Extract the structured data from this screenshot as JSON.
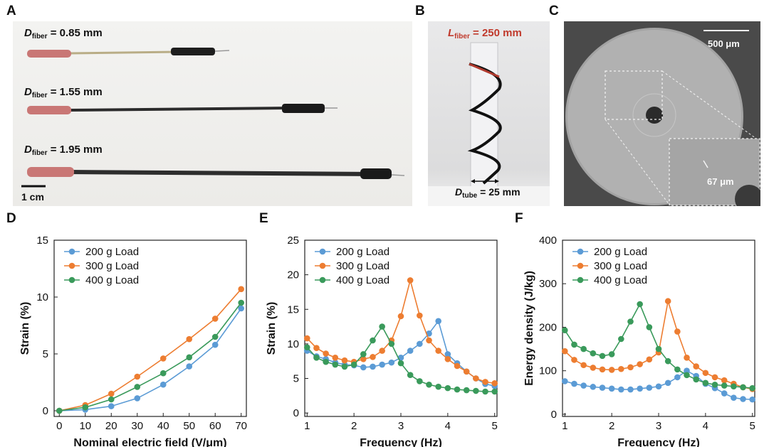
{
  "panels": {
    "a": {
      "label": "A",
      "fibers": [
        {
          "symbol": "D",
          "subscript": "fiber",
          "value": "= 0.85 mm"
        },
        {
          "symbol": "D",
          "subscript": "fiber",
          "value": "= 1.55 mm"
        },
        {
          "symbol": "D",
          "subscript": "fiber",
          "value": "= 1.95 mm"
        }
      ],
      "scale": "1 cm"
    },
    "b": {
      "label": "B",
      "length": {
        "symbol": "L",
        "subscript": "fiber",
        "value": "= 250 mm"
      },
      "tube": {
        "symbol": "D",
        "subscript": "tube",
        "value": "= 25 mm"
      }
    },
    "c": {
      "label": "C",
      "scale": "500 μm",
      "inset_scale": "67 μm"
    },
    "d": {
      "label": "D"
    },
    "e": {
      "label": "E"
    },
    "f": {
      "label": "F"
    }
  },
  "colors": {
    "blue": "#5b9bd5",
    "orange": "#ed7d31",
    "green": "#3a9a5b",
    "fiber_label_red": "#c0392b"
  },
  "chart_data": [
    {
      "id": "d",
      "type": "line",
      "xlabel": "Nominal electric field (V/μm)",
      "ylabel": "Strain (%)",
      "xlim": [
        -2,
        72
      ],
      "ylim": [
        -0.5,
        15
      ],
      "xticks": [
        0,
        10,
        20,
        30,
        40,
        50,
        60,
        70
      ],
      "yticks": [
        0,
        5,
        10,
        15
      ],
      "x": [
        0,
        10,
        20,
        30,
        40,
        50,
        60,
        70
      ],
      "legend_position": "top-left",
      "series": [
        {
          "name": "200 g Load",
          "color": "#5b9bd5",
          "values": [
            0,
            0.1,
            0.4,
            1.1,
            2.3,
            3.9,
            5.8,
            9.0
          ]
        },
        {
          "name": "300 g Load",
          "color": "#ed7d31",
          "values": [
            0,
            0.5,
            1.5,
            3.0,
            4.6,
            6.3,
            8.1,
            10.7
          ]
        },
        {
          "name": "400 g Load",
          "color": "#3a9a5b",
          "values": [
            0,
            0.3,
            1.0,
            2.1,
            3.3,
            4.7,
            6.5,
            9.5
          ]
        }
      ]
    },
    {
      "id": "e",
      "type": "line",
      "xlabel": "Frequency (Hz)",
      "ylabel": "Strain (%)",
      "xlim": [
        0.95,
        5.05
      ],
      "ylim": [
        -0.5,
        25
      ],
      "xticks": [
        1,
        2,
        3,
        4,
        5
      ],
      "yticks": [
        0,
        5,
        10,
        15,
        20,
        25
      ],
      "x": [
        1,
        1.2,
        1.4,
        1.6,
        1.8,
        2.0,
        2.2,
        2.4,
        2.6,
        2.8,
        3.0,
        3.2,
        3.4,
        3.6,
        3.8,
        4.0,
        4.2,
        4.4,
        4.6,
        4.8,
        5.0
      ],
      "legend_position": "top-left",
      "series": [
        {
          "name": "200 g Load",
          "color": "#5b9bd5",
          "values": [
            9.0,
            8.2,
            7.8,
            7.3,
            7.0,
            6.9,
            6.6,
            6.7,
            7.0,
            7.3,
            8.0,
            9.0,
            10.0,
            11.5,
            13.3,
            8.5,
            7.2,
            6.0,
            5.0,
            4.2,
            3.9
          ]
        },
        {
          "name": "300 g Load",
          "color": "#ed7d31",
          "values": [
            10.8,
            9.4,
            8.6,
            8.0,
            7.6,
            7.4,
            7.8,
            8.1,
            9.0,
            10.5,
            14.0,
            19.2,
            14.1,
            10.5,
            9.0,
            7.8,
            6.8,
            6.0,
            5.0,
            4.5,
            4.3
          ]
        },
        {
          "name": "400 g Load",
          "color": "#3a9a5b",
          "values": [
            9.5,
            8.0,
            7.4,
            7.0,
            6.7,
            7.0,
            8.5,
            10.5,
            12.5,
            10.0,
            7.2,
            5.5,
            4.6,
            4.1,
            3.8,
            3.6,
            3.4,
            3.3,
            3.2,
            3.1,
            3.1
          ]
        }
      ]
    },
    {
      "id": "f",
      "type": "line",
      "xlabel": "Frequency (Hz)",
      "ylabel": "Energy density (J/kg)",
      "xlim": [
        0.95,
        5.05
      ],
      "ylim": [
        -5,
        400
      ],
      "xticks": [
        1,
        2,
        3,
        4,
        5
      ],
      "yticks": [
        0,
        100,
        200,
        300,
        400
      ],
      "x": [
        1,
        1.2,
        1.4,
        1.6,
        1.8,
        2.0,
        2.2,
        2.4,
        2.6,
        2.8,
        3.0,
        3.2,
        3.4,
        3.6,
        3.8,
        4.0,
        4.2,
        4.4,
        4.6,
        4.8,
        5.0
      ],
      "legend_position": "top-left",
      "series": [
        {
          "name": "200 g Load",
          "color": "#5b9bd5",
          "values": [
            76,
            70,
            66,
            63,
            61,
            59,
            57,
            57,
            59,
            61,
            64,
            72,
            85,
            100,
            88,
            70,
            60,
            48,
            38,
            35,
            34
          ]
        },
        {
          "name": "300 g Load",
          "color": "#ed7d31",
          "values": [
            145,
            125,
            113,
            107,
            103,
            102,
            104,
            108,
            115,
            126,
            142,
            260,
            190,
            130,
            110,
            95,
            85,
            78,
            70,
            62,
            58
          ]
        },
        {
          "name": "400 g Load",
          "color": "#3a9a5b",
          "values": [
            193,
            160,
            150,
            140,
            134,
            138,
            173,
            213,
            253,
            200,
            150,
            122,
            103,
            90,
            80,
            72,
            68,
            66,
            64,
            62,
            60
          ]
        }
      ]
    }
  ]
}
